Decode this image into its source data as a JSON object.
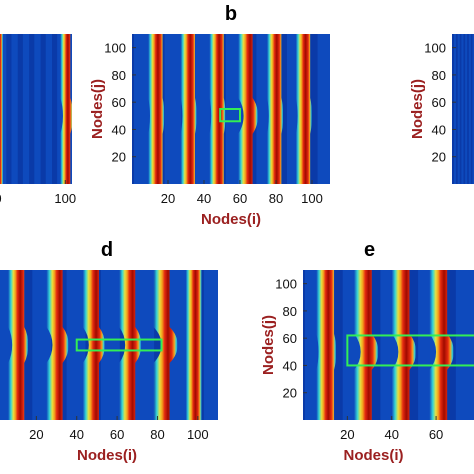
{
  "colors": {
    "background": "#0a3aa8",
    "background_light": "#1560d8",
    "stripe_core": "#a00a00",
    "stripe_mid": "#e42a10",
    "stripe_orange": "#f5a01c",
    "stripe_yellow": "#e6e040",
    "stripe_cyan": "#37d7d7",
    "box": "#33ee55",
    "axis_label": "#9b2020",
    "tick_label": "#111111"
  },
  "chart_data": [
    {
      "panel_label": "",
      "type": "heatmap",
      "xlabel": "",
      "ylabel": "",
      "x_ticks": [
        100
      ],
      "y_ticks": [],
      "xlim": [
        0,
        110
      ],
      "ylim": [
        0,
        110
      ],
      "tick_labels_x": [
        "0",
        "100"
      ],
      "stripes": [
        {
          "x": 0,
          "y_bump": 50,
          "amp": 0
        },
        {
          "x": 100,
          "y_bump": 50,
          "amp": 4
        }
      ],
      "box": null
    },
    {
      "panel_label": "b",
      "type": "heatmap",
      "xlabel": "Nodes(i)",
      "ylabel": "Nodes(j)",
      "x_ticks": [
        20,
        40,
        60,
        80,
        100
      ],
      "y_ticks": [
        20,
        40,
        60,
        80,
        100
      ],
      "xlim": [
        0,
        110
      ],
      "ylim": [
        0,
        110
      ],
      "stripes": [
        {
          "x": 13,
          "y_bump": 50,
          "amp": 1
        },
        {
          "x": 31,
          "y_bump": 50,
          "amp": 1
        },
        {
          "x": 47,
          "y_bump": 50,
          "amp": 1
        },
        {
          "x": 63,
          "y_bump": 50,
          "amp": 3
        },
        {
          "x": 79,
          "y_bump": 50,
          "amp": 1
        },
        {
          "x": 95,
          "y_bump": 50,
          "amp": 1
        }
      ],
      "box": {
        "x0": 49,
        "x1": 60,
        "y0": 46,
        "y1": 55
      }
    },
    {
      "panel_label": "",
      "type": "heatmap",
      "xlabel": "",
      "ylabel": "Nodes(j)",
      "x_ticks": [],
      "y_ticks": [
        20,
        40,
        60,
        80,
        100
      ],
      "xlim": [
        0,
        110
      ],
      "ylim": [
        0,
        110
      ],
      "stripes": [],
      "box": null
    },
    {
      "panel_label": "d",
      "type": "heatmap",
      "xlabel": "Nodes(i)",
      "ylabel": "",
      "x_ticks": [
        20,
        40,
        60,
        80,
        100
      ],
      "y_ticks": [],
      "xlim": [
        0,
        110
      ],
      "ylim": [
        0,
        110
      ],
      "stripes": [
        {
          "x": 10,
          "y_bump": 55,
          "amp": 2
        },
        {
          "x": 29,
          "y_bump": 55,
          "amp": 3
        },
        {
          "x": 47,
          "y_bump": 55,
          "amp": 3
        },
        {
          "x": 65,
          "y_bump": 55,
          "amp": 3
        },
        {
          "x": 82,
          "y_bump": 55,
          "amp": 4
        },
        {
          "x": 98,
          "y_bump": 55,
          "amp": 0
        }
      ],
      "box": {
        "x0": 40,
        "x1": 82,
        "y0": 51,
        "y1": 59
      }
    },
    {
      "panel_label": "e",
      "type": "heatmap",
      "xlabel": "Nodes(i)",
      "ylabel": "Nodes(j)",
      "x_ticks": [
        20,
        40,
        60
      ],
      "y_ticks": [
        20,
        40,
        60,
        80,
        100
      ],
      "xlim": [
        0,
        78
      ],
      "ylim": [
        0,
        110
      ],
      "stripes": [
        {
          "x": 10,
          "y_bump": 50,
          "amp": 1
        },
        {
          "x": 27,
          "y_bump": 50,
          "amp": 3
        },
        {
          "x": 44,
          "y_bump": 50,
          "amp": 3
        },
        {
          "x": 61,
          "y_bump": 50,
          "amp": 3
        }
      ],
      "box": {
        "x0": 20,
        "x1": 78,
        "y0": 40,
        "y1": 62
      }
    }
  ]
}
